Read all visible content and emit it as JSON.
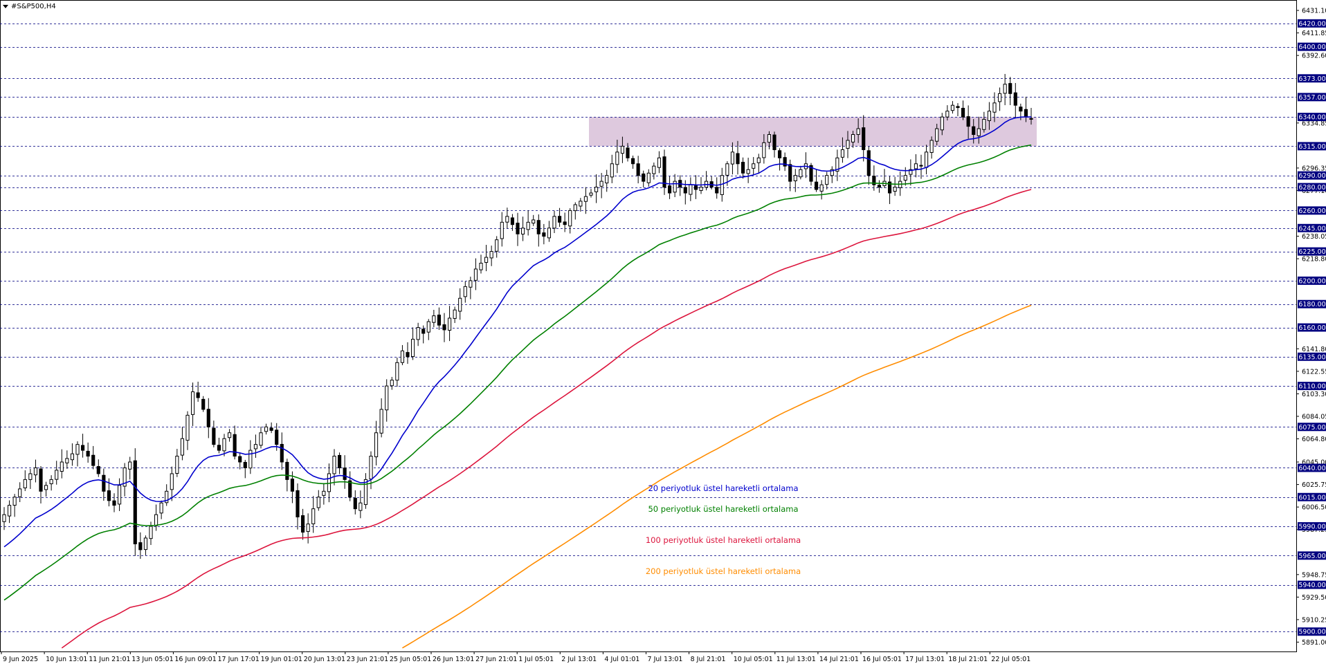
{
  "window": {
    "title": "#S&P500,H4"
  },
  "chart_data": {
    "type": "candlestick",
    "symbol": "#S&P500",
    "timeframe": "H4",
    "ylim": [
      5883,
      6440
    ],
    "price_axis_ticks": [
      "6431.10",
      "6411.85",
      "6392.60",
      "6334.85",
      "6296.35",
      "6277.10",
      "6238.05",
      "6218.80",
      "6141.80",
      "6122.55",
      "6103.30",
      "6084.05",
      "6064.80",
      "6045.00",
      "6025.75",
      "6006.50",
      "5987.25",
      "5948.75",
      "5929.50",
      "5910.25",
      "5891.00"
    ],
    "horizontal_levels": [
      "6420.00",
      "6400.00",
      "6373.00",
      "6357.00",
      "6340.00",
      "6315.00",
      "6290.00",
      "6280.00",
      "6260.00",
      "6245.00",
      "6225.00",
      "6200.00",
      "6180.00",
      "6160.00",
      "6135.00",
      "6110.00",
      "6075.00",
      "6040.00",
      "6015.00",
      "5990.00",
      "5965.00",
      "5940.00",
      "5900.00"
    ],
    "time_axis_labels": [
      "9 Jun 2025",
      "10 Jun 13:01",
      "11 Jun 21:01",
      "13 Jun 05:01",
      "16 Jun 09:01",
      "17 Jun 17:01",
      "19 Jun 01:01",
      "20 Jun 13:01",
      "23 Jun 21:01",
      "25 Jun 05:01",
      "26 Jun 13:01",
      "27 Jun 21:01",
      "1 Jul 05:01",
      "2 Jul 13:01",
      "4 Jul 01:01",
      "7 Jul 13:01",
      "8 Jul 21:01",
      "10 Jul 05:01",
      "11 Jul 13:01",
      "14 Jul 21:01",
      "16 Jul 05:01",
      "17 Jul 13:01",
      "18 Jul 21:01",
      "22 Jul 05:01"
    ],
    "zone": {
      "from": 6315,
      "to": 6340,
      "color": "#d8bfd8"
    },
    "closes": [
      6000,
      6008,
      6015,
      6022,
      6030,
      6035,
      6040,
      6020,
      6025,
      6030,
      6038,
      6045,
      6048,
      6052,
      6060,
      6055,
      6050,
      6042,
      6035,
      6020,
      6012,
      6008,
      6025,
      6040,
      6045,
      5975,
      5970,
      5980,
      5990,
      6000,
      6010,
      6020,
      6035,
      6050,
      6065,
      6085,
      6105,
      6100,
      6090,
      6075,
      6060,
      6055,
      6065,
      6070,
      6050,
      6045,
      6040,
      6055,
      6060,
      6070,
      6075,
      6072,
      6060,
      6045,
      6030,
      6020,
      5998,
      5985,
      5992,
      6005,
      6015,
      6020,
      6035,
      6050,
      6040,
      6030,
      6015,
      6005,
      6010,
      6030,
      6050,
      6070,
      6090,
      6110,
      6115,
      6130,
      6140,
      6135,
      6150,
      6160,
      6155,
      6165,
      6170,
      6162,
      6158,
      6168,
      6175,
      6185,
      6195,
      6200,
      6210,
      6215,
      6220,
      6225,
      6235,
      6250,
      6255,
      6248,
      6240,
      6245,
      6250,
      6252,
      6240,
      6238,
      6245,
      6255,
      6250,
      6248,
      6260,
      6265,
      6268,
      6272,
      6275,
      6280,
      6285,
      6290,
      6300,
      6310,
      6315,
      6305,
      6300,
      6290,
      6285,
      6292,
      6298,
      6305,
      6280,
      6275,
      6285,
      6280,
      6275,
      6282,
      6278,
      6280,
      6285,
      6280,
      6275,
      6290,
      6300,
      6310,
      6300,
      6292,
      6295,
      6300,
      6305,
      6318,
      6325,
      6312,
      6305,
      6298,
      6285,
      6290,
      6295,
      6300,
      6285,
      6278,
      6282,
      6290,
      6295,
      6305,
      6312,
      6320,
      6325,
      6330,
      6312,
      6290,
      6282,
      6280,
      6285,
      6275,
      6280,
      6285,
      6290,
      6295,
      6300,
      6298,
      6310,
      6320,
      6330,
      6340,
      6345,
      6350,
      6348,
      6340,
      6332,
      6325,
      6330,
      6338,
      6345,
      6352,
      6360,
      6368,
      6360,
      6350,
      6345,
      6340,
      6338
    ],
    "ema_values": {
      "ema20_final": 6340,
      "ema50_final": 6316,
      "ema100_final": 6278,
      "ema200_final": 6179
    },
    "legend": [
      {
        "name": "20 periyotluk üstel hareketli ortalama",
        "color": "#0000cd"
      },
      {
        "name": "50 periyotluk üstel hareketli ortalama",
        "color": "#008000"
      },
      {
        "name": "100 periyotluk üstel hareketli ortalama",
        "color": "#dc143c"
      },
      {
        "name": "200 periyotluk üstel hareketli ortalama",
        "color": "#ff8c00"
      }
    ]
  }
}
